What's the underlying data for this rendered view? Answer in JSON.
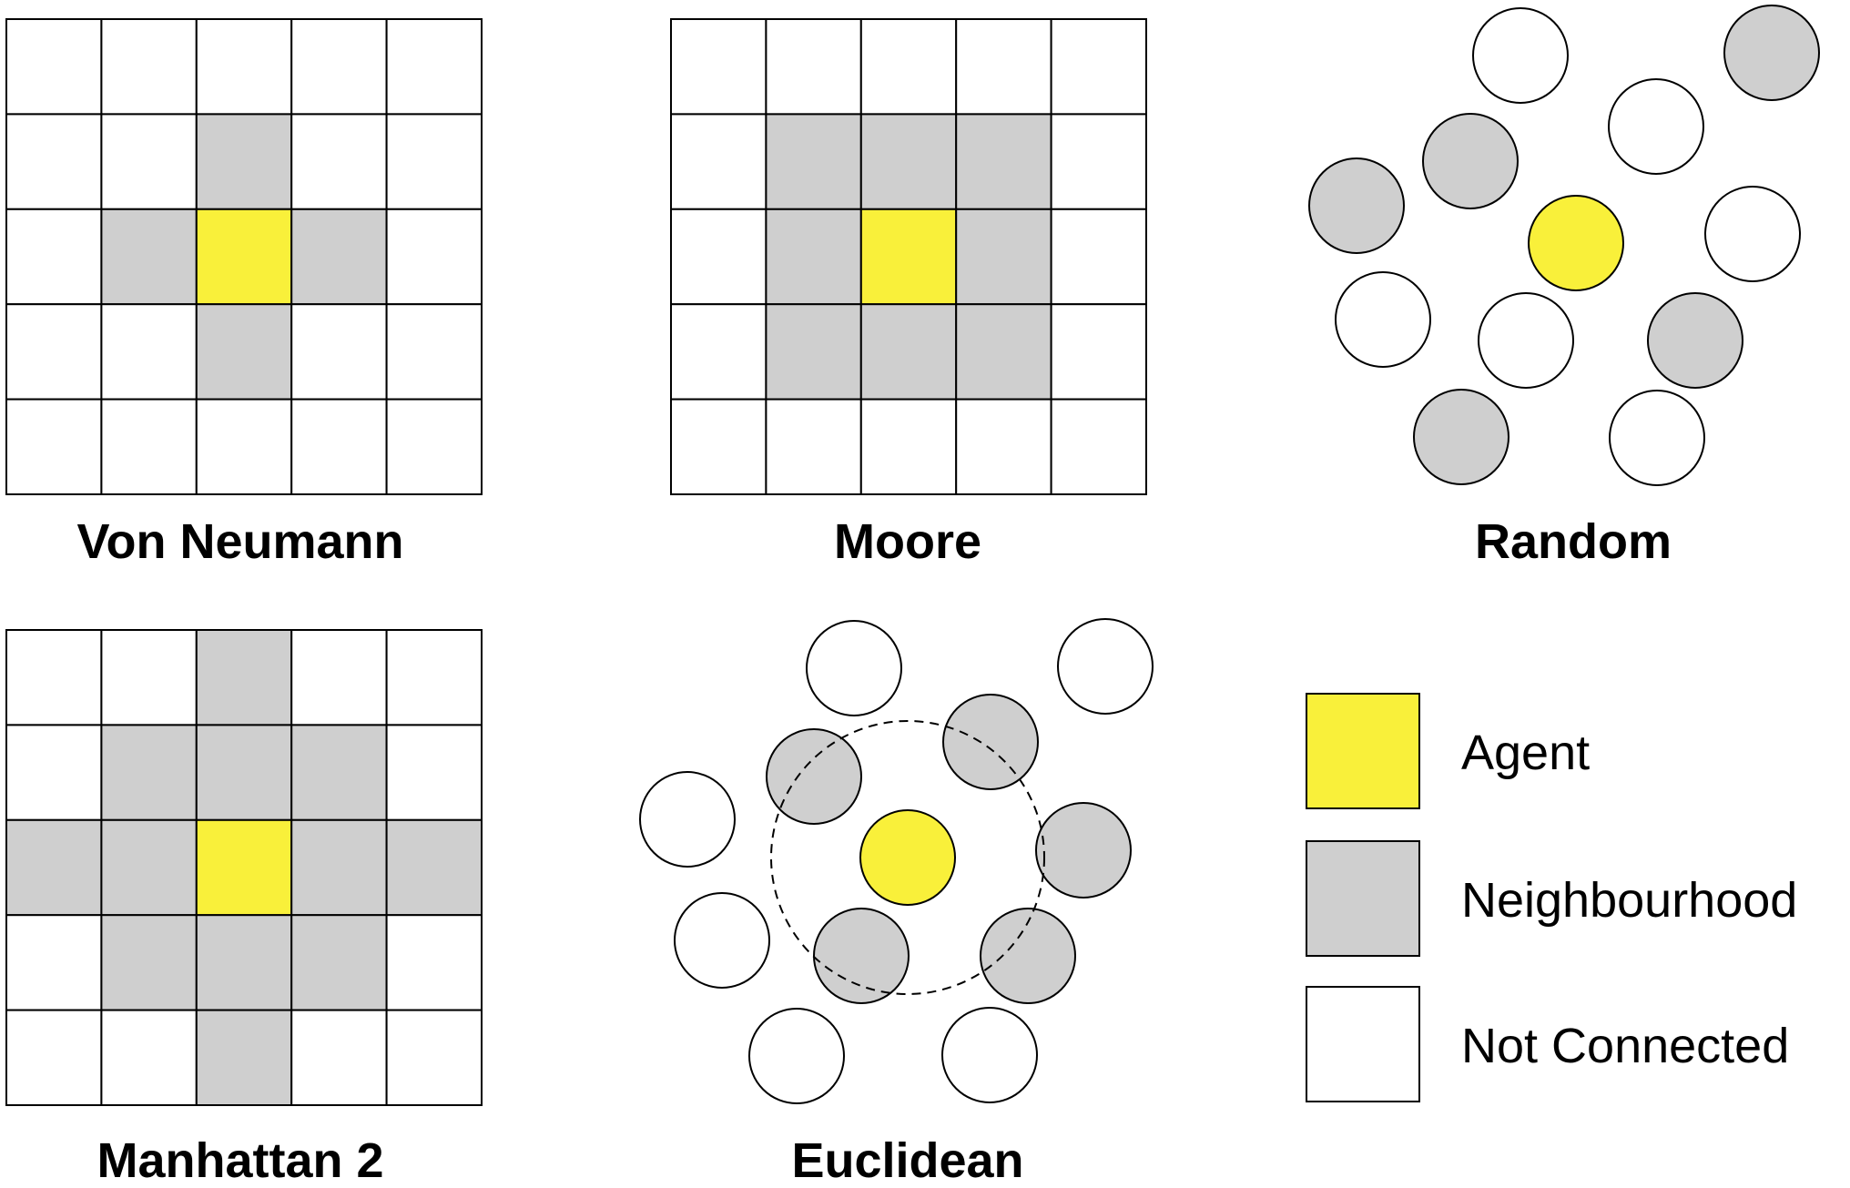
{
  "colors": {
    "agent": "#f9f03a",
    "neighbourhood": "#cfcfcf",
    "not_connected": "#ffffff",
    "stroke": "#000000"
  },
  "panels": {
    "von_neumann": {
      "title": "Von Neumann",
      "grid": [
        [
          0,
          0,
          0,
          0,
          0
        ],
        [
          0,
          0,
          1,
          0,
          0
        ],
        [
          0,
          1,
          2,
          1,
          0
        ],
        [
          0,
          0,
          1,
          0,
          0
        ],
        [
          0,
          0,
          0,
          0,
          0
        ]
      ]
    },
    "moore": {
      "title": "Moore",
      "grid": [
        [
          0,
          0,
          0,
          0,
          0
        ],
        [
          0,
          1,
          1,
          1,
          0
        ],
        [
          0,
          1,
          2,
          1,
          0
        ],
        [
          0,
          1,
          1,
          1,
          0
        ],
        [
          0,
          0,
          0,
          0,
          0
        ]
      ]
    },
    "random": {
      "title": "Random",
      "nodes": [
        "not_connected",
        "neighbourhood",
        "not_connected",
        "neighbourhood",
        "neighbourhood",
        "agent",
        "not_connected",
        "not_connected",
        "not_connected",
        "neighbourhood",
        "neighbourhood",
        "not_connected"
      ]
    },
    "manhattan2": {
      "title": "Manhattan 2",
      "grid": [
        [
          0,
          0,
          1,
          0,
          0
        ],
        [
          0,
          1,
          1,
          1,
          0
        ],
        [
          1,
          1,
          2,
          1,
          1
        ],
        [
          0,
          1,
          1,
          1,
          0
        ],
        [
          0,
          0,
          1,
          0,
          0
        ]
      ]
    },
    "euclidean": {
      "title": "Euclidean",
      "nodes": [
        "not_connected",
        "not_connected",
        "neighbourhood",
        "neighbourhood",
        "not_connected",
        "agent",
        "neighbourhood",
        "not_connected",
        "neighbourhood",
        "neighbourhood",
        "not_connected",
        "not_connected"
      ]
    }
  },
  "legend": {
    "agent": "Agent",
    "neighbourhood": "Neighbourhood",
    "not_connected": "Not Connected"
  }
}
